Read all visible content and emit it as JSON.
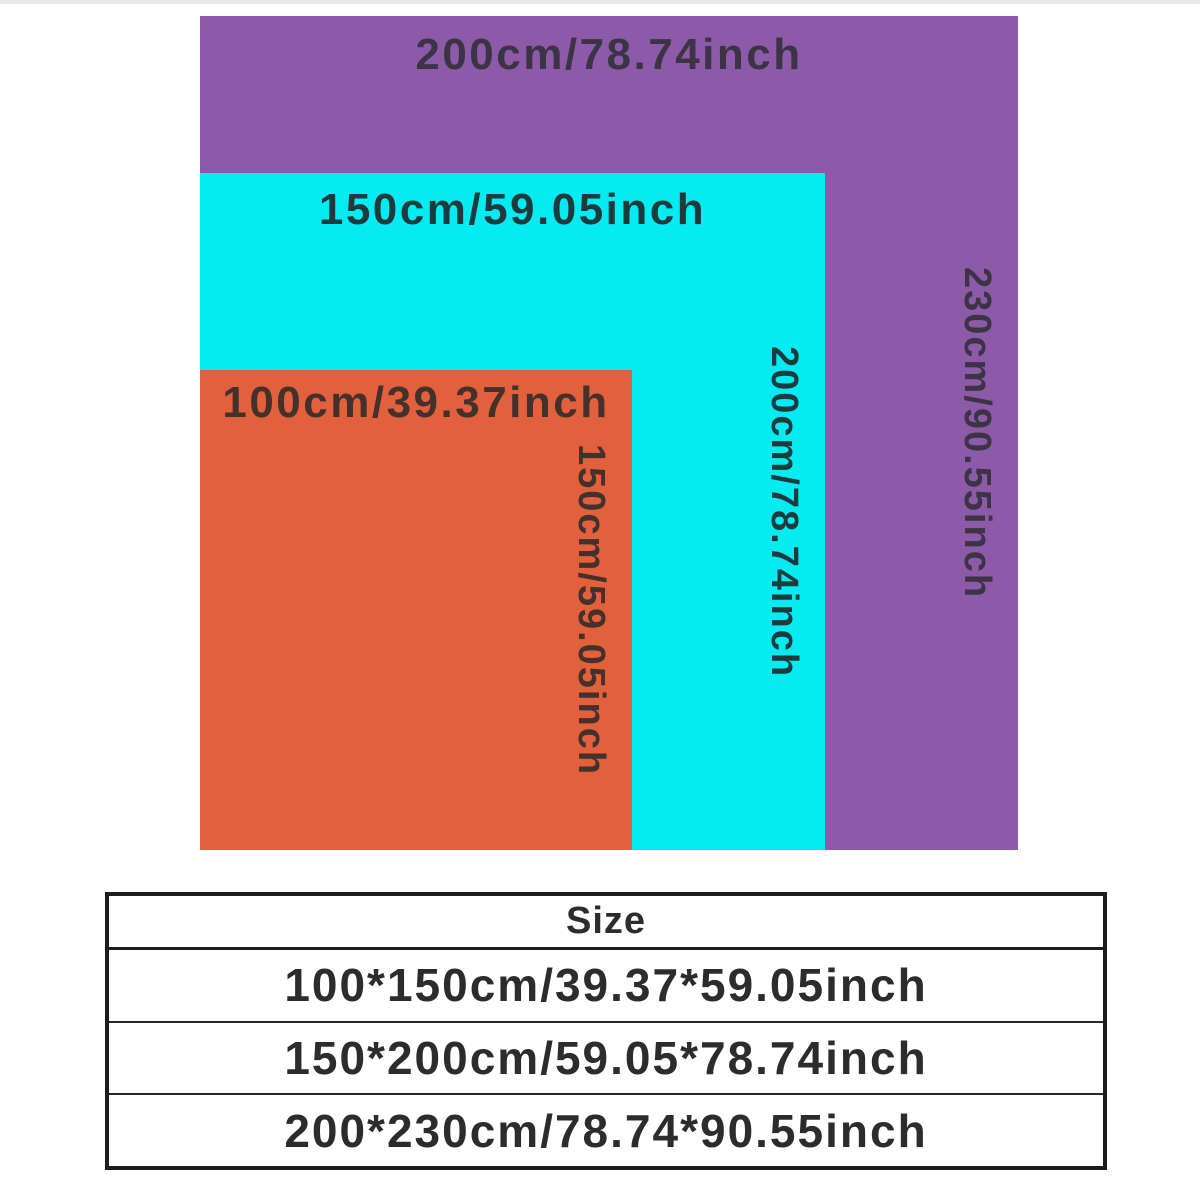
{
  "page": {
    "background_color": "#ffffff"
  },
  "diagram": {
    "rectangles": [
      {
        "name": "size-200x230",
        "color": "#8c5aa8",
        "width_label": "200cm/78.74inch",
        "height_label": "230cm/90.55inch"
      },
      {
        "name": "size-150x200",
        "color": "#05ebf2",
        "width_label": "150cm/59.05inch",
        "height_label": "200cm/78.74inch"
      },
      {
        "name": "size-100x150",
        "color": "#e3603c",
        "width_label": "100cm/39.37inch",
        "height_label": "150cm/59.05inch"
      }
    ],
    "label_text_colors": {
      "on_purple": "#3c3444",
      "on_cyan": "#1d3a3d",
      "on_orange": "#44312c"
    }
  },
  "size_table": {
    "header": "Size",
    "border_color": "#1d1d1d",
    "text_color": "#2d2b2b",
    "rows": [
      "100*150cm/39.37*59.05inch",
      "150*200cm/59.05*78.74inch",
      "200*230cm/78.74*90.55inch"
    ]
  }
}
